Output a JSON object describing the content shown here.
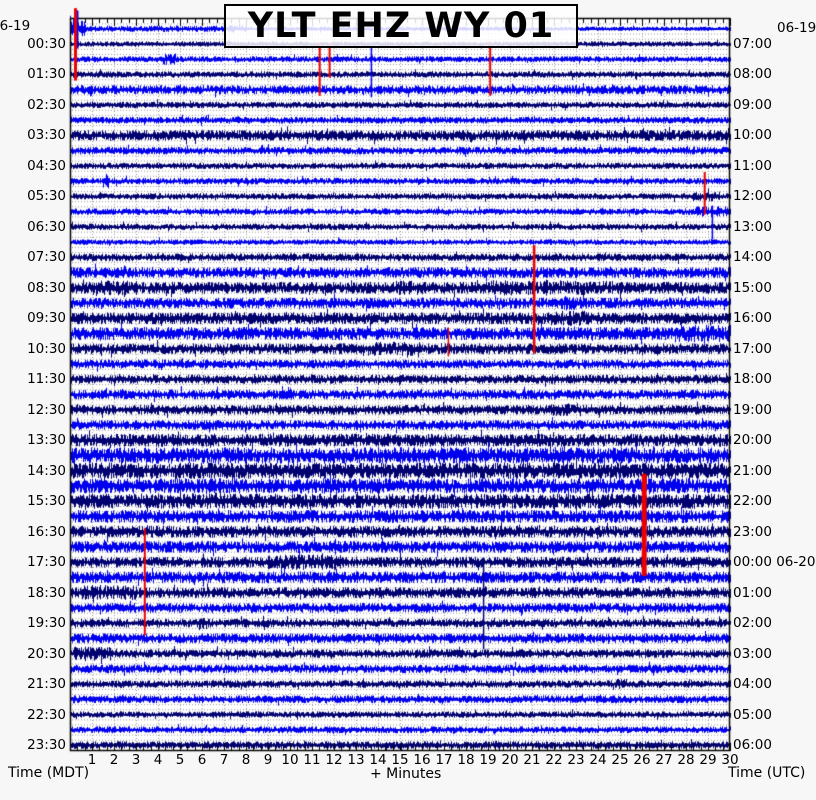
{
  "station": {
    "title": "YLT EHZ WY 01"
  },
  "dates": {
    "top_left": "06-19",
    "top_right": "06-19",
    "utc_rollover_date": "06-20"
  },
  "axes": {
    "left_axis_label": "Time (MDT)",
    "right_axis_label": "Time (UTC)",
    "bottom_axis_label": "+ Minutes",
    "minute_ticks": [
      "1",
      "2",
      "3",
      "4",
      "5",
      "6",
      "7",
      "8",
      "9",
      "10",
      "11",
      "12",
      "13",
      "14",
      "15",
      "16",
      "17",
      "18",
      "19",
      "20",
      "21",
      "22",
      "23",
      "24",
      "25",
      "26",
      "27",
      "28",
      "29",
      "30"
    ],
    "left_time_labels": [
      "00:30",
      "01:30",
      "02:30",
      "03:30",
      "04:30",
      "05:30",
      "06:30",
      "07:30",
      "08:30",
      "09:30",
      "10:30",
      "11:30",
      "12:30",
      "13:30",
      "14:30",
      "15:30",
      "16:30",
      "17:30",
      "18:30",
      "19:30",
      "20:30",
      "21:30",
      "22:30",
      "23:30"
    ],
    "right_time_labels": [
      "07:00",
      "08:00",
      "09:00",
      "10:00",
      "11:00",
      "12:00",
      "13:00",
      "14:00",
      "15:00",
      "16:00",
      "17:00",
      "18:00",
      "19:00",
      "20:00",
      "21:00",
      "22:00",
      "23:00",
      "00:00",
      "01:00",
      "02:00",
      "03:00",
      "04:00",
      "05:00",
      "06:00"
    ],
    "utc_rollover_index": 17
  },
  "colors": {
    "blue": "#0000ee",
    "navy": "#000070",
    "red": "#e90000",
    "grid_dots": "#9a9a9a",
    "frame": "#000000",
    "plot_bg": "#ffffff",
    "page_bg": "#f7f7f7"
  },
  "chart_data": {
    "type": "helicorder",
    "minutes_per_line": 30,
    "lines": 48,
    "tz_left": "MDT",
    "tz_right": "UTC",
    "rows": [
      {
        "start": "00:00",
        "color": "blue",
        "amp": 2.0,
        "bursts": [
          [
            0,
            0.7,
            9
          ],
          [
            0.7,
            8,
            3
          ]
        ]
      },
      {
        "start": "00:30",
        "color": "navy",
        "amp": 2.5,
        "bursts": []
      },
      {
        "start": "01:00",
        "color": "blue",
        "amp": 2.8,
        "bursts": [
          [
            4.2,
            4.8,
            5.5
          ]
        ]
      },
      {
        "start": "01:30",
        "color": "navy",
        "amp": 3.0,
        "bursts": []
      },
      {
        "start": "02:00",
        "color": "blue",
        "amp": 4.2,
        "bursts": []
      },
      {
        "start": "02:30",
        "color": "navy",
        "amp": 3.0,
        "bursts": []
      },
      {
        "start": "03:00",
        "color": "blue",
        "amp": 3.2,
        "bursts": []
      },
      {
        "start": "03:30",
        "color": "navy",
        "amp": 5.0,
        "bursts": []
      },
      {
        "start": "04:00",
        "color": "blue",
        "amp": 3.5,
        "bursts": []
      },
      {
        "start": "04:30",
        "color": "navy",
        "amp": 3.0,
        "bursts": []
      },
      {
        "start": "05:00",
        "color": "blue",
        "amp": 3.0,
        "bursts": [
          [
            1.5,
            1.75,
            7
          ]
        ]
      },
      {
        "start": "05:30",
        "color": "navy",
        "amp": 3.0,
        "bursts": [
          [
            28.3,
            29.5,
            4.5
          ]
        ]
      },
      {
        "start": "06:00",
        "color": "blue",
        "amp": 3.0,
        "bursts": [
          [
            28.4,
            30,
            5
          ]
        ]
      },
      {
        "start": "06:30",
        "color": "navy",
        "amp": 3.0,
        "bursts": []
      },
      {
        "start": "07:00",
        "color": "blue",
        "amp": 2.6,
        "bursts": []
      },
      {
        "start": "07:30",
        "color": "navy",
        "amp": 3.6,
        "bursts": []
      },
      {
        "start": "08:00",
        "color": "blue",
        "amp": 5.0,
        "bursts": []
      },
      {
        "start": "08:30",
        "color": "navy",
        "amp": 5.5,
        "bursts": [
          [
            1,
            3,
            7
          ],
          [
            14.8,
            16,
            6.5
          ],
          [
            19,
            20.5,
            7
          ],
          [
            20.8,
            22.6,
            7.5
          ],
          [
            22.6,
            25,
            6.5
          ]
        ]
      },
      {
        "start": "09:00",
        "color": "blue",
        "amp": 5.0,
        "bursts": [
          [
            22.2,
            23.3,
            6.5
          ]
        ]
      },
      {
        "start": "09:30",
        "color": "navy",
        "amp": 5.5,
        "bursts": [
          [
            21.8,
            23.6,
            7
          ]
        ]
      },
      {
        "start": "10:00",
        "color": "blue",
        "amp": 6.0,
        "bursts": [
          [
            27.5,
            30,
            8
          ]
        ]
      },
      {
        "start": "10:30",
        "color": "navy",
        "amp": 5.0,
        "bursts": [
          [
            13.4,
            15.9,
            6.5
          ]
        ]
      },
      {
        "start": "11:00",
        "color": "blue",
        "amp": 4.2,
        "bursts": []
      },
      {
        "start": "11:30",
        "color": "navy",
        "amp": 4.2,
        "bursts": []
      },
      {
        "start": "12:00",
        "color": "blue",
        "amp": 4.5,
        "bursts": []
      },
      {
        "start": "12:30",
        "color": "navy",
        "amp": 4.5,
        "bursts": [
          [
            21.8,
            23.2,
            6
          ]
        ]
      },
      {
        "start": "13:00",
        "color": "blue",
        "amp": 4.5,
        "bursts": []
      },
      {
        "start": "13:30",
        "color": "navy",
        "amp": 6.0,
        "bursts": []
      },
      {
        "start": "14:00",
        "color": "blue",
        "amp": 7.5,
        "bursts": []
      },
      {
        "start": "14:30",
        "color": "navy",
        "amp": 7.5,
        "bursts": []
      },
      {
        "start": "15:00",
        "color": "blue",
        "amp": 7.0,
        "bursts": []
      },
      {
        "start": "15:30",
        "color": "navy",
        "amp": 7.0,
        "bursts": []
      },
      {
        "start": "16:00",
        "color": "blue",
        "amp": 6.0,
        "bursts": []
      },
      {
        "start": "16:30",
        "color": "navy",
        "amp": 5.5,
        "bursts": []
      },
      {
        "start": "17:00",
        "color": "blue",
        "amp": 5.5,
        "bursts": [
          [
            0.5,
            1.5,
            6
          ]
        ]
      },
      {
        "start": "17:30",
        "color": "navy",
        "amp": 5.0,
        "bursts": [
          [
            9,
            12.3,
            7
          ]
        ]
      },
      {
        "start": "18:00",
        "color": "blue",
        "amp": 5.5,
        "bursts": []
      },
      {
        "start": "18:30",
        "color": "navy",
        "amp": 5.0,
        "bursts": [
          [
            0.5,
            3,
            7
          ]
        ]
      },
      {
        "start": "19:00",
        "color": "blue",
        "amp": 4.5,
        "bursts": []
      },
      {
        "start": "19:30",
        "color": "navy",
        "amp": 4.0,
        "bursts": [
          [
            5.9,
            6.2,
            5.5
          ]
        ]
      },
      {
        "start": "20:00",
        "color": "blue",
        "amp": 4.5,
        "bursts": []
      },
      {
        "start": "20:30",
        "color": "navy",
        "amp": 4.0,
        "bursts": [
          [
            0.2,
            1.9,
            6.5
          ]
        ]
      },
      {
        "start": "21:00",
        "color": "blue",
        "amp": 4.0,
        "bursts": []
      },
      {
        "start": "21:30",
        "color": "navy",
        "amp": 3.5,
        "bursts": [
          [
            24.8,
            25.3,
            5
          ]
        ]
      },
      {
        "start": "22:00",
        "color": "blue",
        "amp": 3.6,
        "bursts": []
      },
      {
        "start": "22:30",
        "color": "navy",
        "amp": 3.0,
        "bursts": []
      },
      {
        "start": "23:00",
        "color": "blue",
        "amp": 3.2,
        "bursts": []
      },
      {
        "start": "23:30",
        "color": "navy",
        "amp": 3.5,
        "bursts": []
      }
    ],
    "red_markers": [
      {
        "minute": 0.25,
        "row_from": -1.35,
        "row_to": 3.4,
        "width": 3
      },
      {
        "minute": 11.35,
        "row_from": 0.9,
        "row_to": 4.4,
        "width": 2
      },
      {
        "minute": 11.8,
        "row_from": 0.9,
        "row_to": 3.2,
        "width": 2
      },
      {
        "minute": 19.1,
        "row_from": 0.9,
        "row_to": 4.4,
        "width": 2
      },
      {
        "minute": 28.85,
        "row_from": 9.4,
        "row_to": 12.2,
        "width": 2
      },
      {
        "minute": 21.1,
        "row_from": 14.2,
        "row_to": 21.3,
        "width": 2.5
      },
      {
        "minute": 17.2,
        "row_from": 19.6,
        "row_to": 21.5,
        "width": 1.5
      },
      {
        "minute": 26.1,
        "row_from": 29.2,
        "row_to": 35.9,
        "width": 5
      },
      {
        "minute": 3.4,
        "row_from": 32.8,
        "row_to": 39.8,
        "width": 2
      }
    ],
    "spikes": [
      {
        "minute": 0.35,
        "row_from": -1.2,
        "row_to": 1.3,
        "color": "blue"
      },
      {
        "minute": 13.7,
        "row_from": 1.0,
        "row_to": 4.5,
        "color": "blue"
      },
      {
        "minute": 29.2,
        "row_from": 11.6,
        "row_to": 13.8,
        "color": "blue"
      },
      {
        "minute": 18.8,
        "row_from": 34.7,
        "row_to": 40.7,
        "color": "navy"
      }
    ]
  }
}
